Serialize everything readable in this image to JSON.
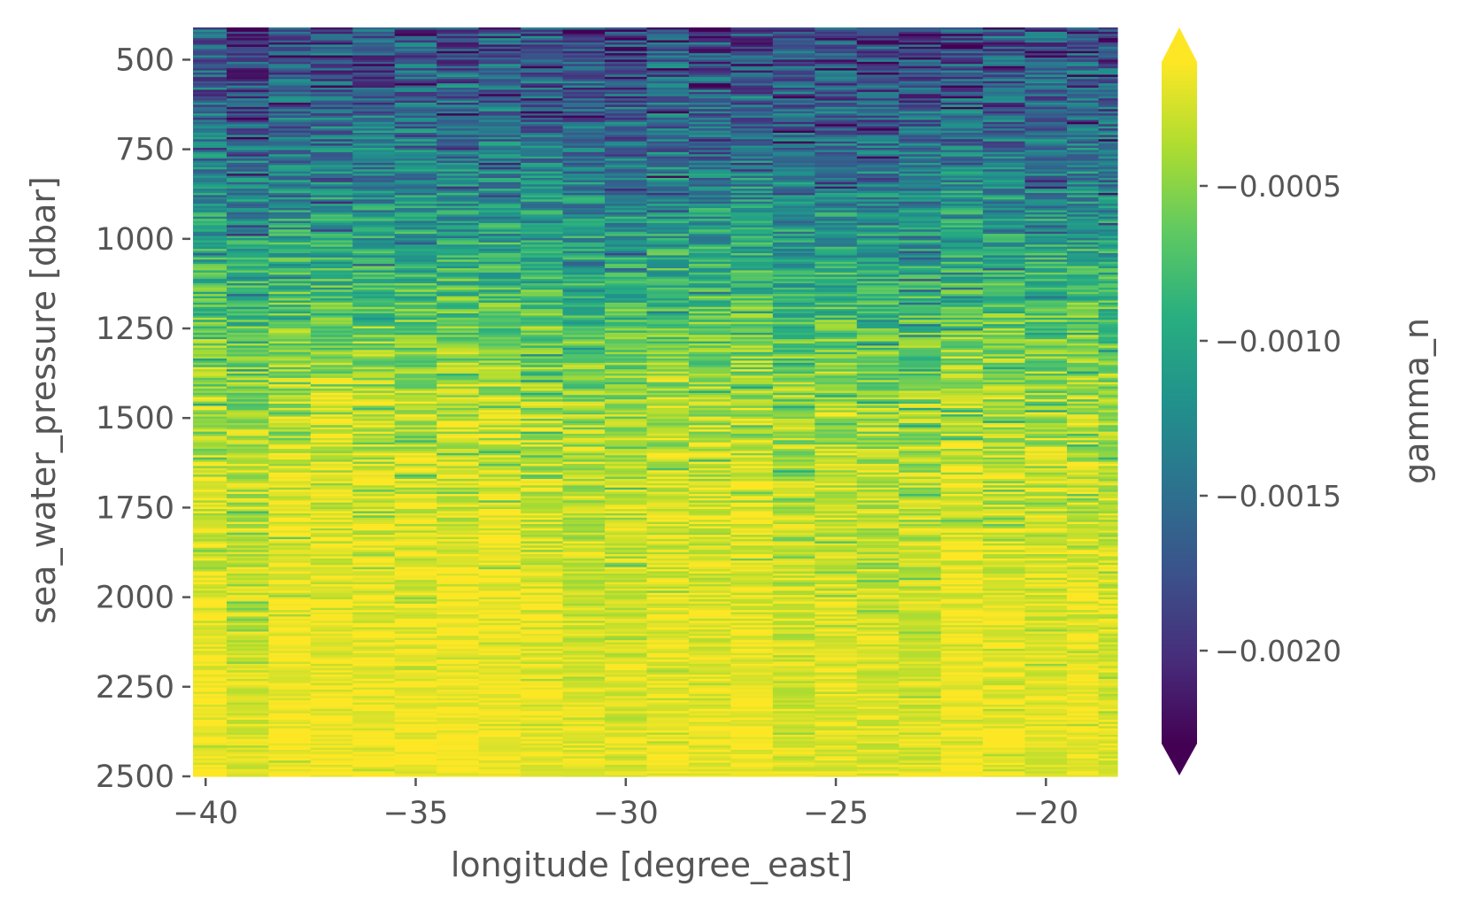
{
  "chart_data": {
    "type": "heatmap",
    "title": "",
    "xlabel": "longitude [degree_east]",
    "ylabel": "sea_water_pressure [dbar]",
    "colorbar_label": "gamma_n",
    "colormap": "viridis",
    "colorbar_extend": "both",
    "xlim": [
      -40.3,
      -18.3
    ],
    "ylim": [
      2500,
      410
    ],
    "y_inverted": true,
    "grid": false,
    "x_ticks": [
      -40,
      -35,
      -30,
      -25,
      -20
    ],
    "x_tick_labels": [
      "−40",
      "−35",
      "−30",
      "−25",
      "−20"
    ],
    "y_ticks": [
      500,
      750,
      1000,
      1250,
      1500,
      1750,
      2000,
      2250,
      2500
    ],
    "y_tick_labels": [
      "500",
      "750",
      "1000",
      "1250",
      "1500",
      "1750",
      "2000",
      "2250",
      "2500"
    ],
    "colorbar_range": [
      -0.0023,
      -0.0001
    ],
    "colorbar_ticks": [
      -0.0005,
      -0.001,
      -0.0015,
      -0.002
    ],
    "colorbar_tick_labels": [
      "−0.0005",
      "−0.0010",
      "−0.0015",
      "−0.0020"
    ],
    "longitudes": [
      -40.0,
      -39.0,
      -38.0,
      -37.0,
      -36.0,
      -35.0,
      -34.0,
      -33.0,
      -32.0,
      -31.0,
      -30.0,
      -29.0,
      -28.0,
      -27.0,
      -26.0,
      -25.0,
      -24.0,
      -23.0,
      -22.0,
      -21.0,
      -20.0,
      -19.0,
      -18.5
    ],
    "pressure_profile": {
      "pressure": [
        410,
        500,
        600,
        750,
        900,
        1000,
        1150,
        1250,
        1400,
        1500,
        1750,
        2000,
        2250,
        2500
      ],
      "mean_gamma_n": [
        -0.00175,
        -0.0017,
        -0.0016,
        -0.00145,
        -0.0012,
        -0.00105,
        -0.0008,
        -0.00062,
        -0.00045,
        -0.00035,
        -0.00025,
        -0.0002,
        -0.00017,
        -0.00015
      ]
    },
    "colors": {
      "axis_text": "#555555",
      "background": "#ffffff"
    }
  }
}
